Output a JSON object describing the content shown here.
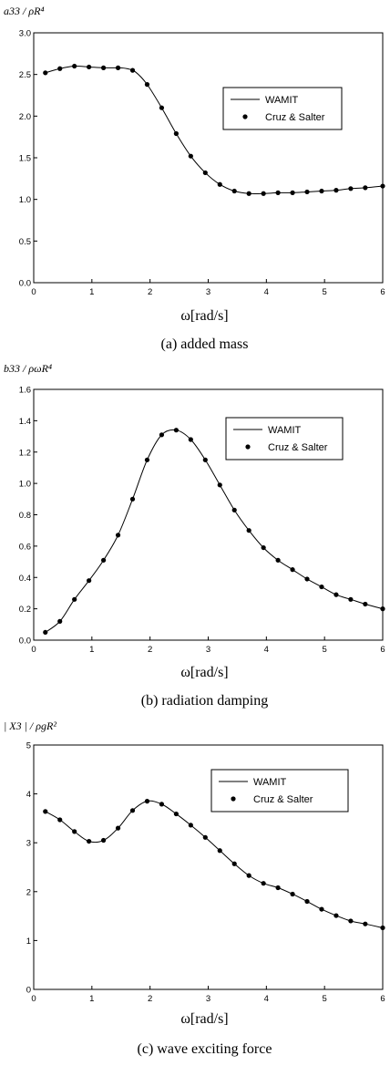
{
  "chart_data": [
    {
      "type": "line",
      "ylabel": "a33 / ρR⁴",
      "xlabel": "ω[rad/s]",
      "caption": "(a) added mass",
      "xlim": [
        0,
        6
      ],
      "ylim": [
        0,
        3.0
      ],
      "xticks": [
        "0",
        "1",
        "2",
        "3",
        "4",
        "5",
        "6"
      ],
      "yticks": [
        "0.0",
        "0.5",
        "1.0",
        "1.5",
        "2.0",
        "2.5",
        "3.0"
      ],
      "legend_position": "upper-right",
      "series": [
        {
          "name": "WAMIT",
          "style": "line",
          "x": [
            0.2,
            0.45,
            0.7,
            0.95,
            1.2,
            1.45,
            1.6,
            1.75,
            1.95,
            2.2,
            2.45,
            2.7,
            2.95,
            3.2,
            3.45,
            3.7,
            3.95,
            4.2,
            4.45,
            4.7,
            4.95,
            5.2,
            5.45,
            5.7,
            6.0
          ],
          "y": [
            2.52,
            2.57,
            2.6,
            2.59,
            2.58,
            2.58,
            2.57,
            2.53,
            2.38,
            2.1,
            1.79,
            1.52,
            1.32,
            1.18,
            1.1,
            1.07,
            1.07,
            1.08,
            1.08,
            1.09,
            1.1,
            1.11,
            1.13,
            1.14,
            1.16
          ]
        },
        {
          "name": "Cruz & Salter",
          "style": "markers",
          "x": [
            0.2,
            0.45,
            0.7,
            0.95,
            1.2,
            1.45,
            1.7,
            1.95,
            2.2,
            2.45,
            2.7,
            2.95,
            3.2,
            3.45,
            3.7,
            3.95,
            4.2,
            4.45,
            4.7,
            4.95,
            5.2,
            5.45,
            5.7,
            6.0
          ],
          "y": [
            2.52,
            2.57,
            2.6,
            2.59,
            2.58,
            2.58,
            2.55,
            2.38,
            2.1,
            1.79,
            1.52,
            1.32,
            1.18,
            1.1,
            1.07,
            1.07,
            1.08,
            1.08,
            1.09,
            1.1,
            1.11,
            1.13,
            1.14,
            1.16
          ]
        }
      ]
    },
    {
      "type": "line",
      "ylabel": "b33 / ρωR⁴",
      "xlabel": "ω[rad/s]",
      "caption": "(b) radiation damping",
      "xlim": [
        0,
        6
      ],
      "ylim": [
        0,
        1.6
      ],
      "xticks": [
        "0",
        "1",
        "2",
        "3",
        "4",
        "5",
        "6"
      ],
      "yticks": [
        "0.0",
        "0.2",
        "0.4",
        "0.6",
        "0.8",
        "1.0",
        "1.2",
        "1.4",
        "1.6"
      ],
      "legend_position": "upper-right",
      "series": [
        {
          "name": "WAMIT",
          "style": "line",
          "x": [
            0.2,
            0.45,
            0.7,
            0.95,
            1.2,
            1.45,
            1.7,
            1.95,
            2.2,
            2.45,
            2.7,
            2.95,
            3.2,
            3.45,
            3.7,
            3.95,
            4.2,
            4.45,
            4.7,
            4.95,
            5.2,
            5.45,
            5.7,
            6.0
          ],
          "y": [
            0.05,
            0.12,
            0.26,
            0.38,
            0.51,
            0.67,
            0.9,
            1.15,
            1.31,
            1.34,
            1.28,
            1.15,
            0.99,
            0.83,
            0.7,
            0.59,
            0.51,
            0.45,
            0.39,
            0.34,
            0.29,
            0.26,
            0.23,
            0.2
          ]
        },
        {
          "name": "Cruz & Salter",
          "style": "markers",
          "x": [
            0.2,
            0.45,
            0.7,
            0.95,
            1.2,
            1.45,
            1.7,
            1.95,
            2.2,
            2.45,
            2.7,
            2.95,
            3.2,
            3.45,
            3.7,
            3.95,
            4.2,
            4.45,
            4.7,
            4.95,
            5.2,
            5.45,
            5.7,
            6.0
          ],
          "y": [
            0.05,
            0.12,
            0.26,
            0.38,
            0.51,
            0.67,
            0.9,
            1.15,
            1.31,
            1.34,
            1.28,
            1.15,
            0.99,
            0.83,
            0.7,
            0.59,
            0.51,
            0.45,
            0.39,
            0.34,
            0.29,
            0.26,
            0.23,
            0.2
          ]
        }
      ]
    },
    {
      "type": "line",
      "ylabel": "| X3 | / ρgR²",
      "xlabel": "ω[rad/s]",
      "caption": "(c) wave exciting force",
      "xlim": [
        0,
        6
      ],
      "ylim": [
        0,
        5
      ],
      "xticks": [
        "0",
        "1",
        "2",
        "3",
        "4",
        "5",
        "6"
      ],
      "yticks": [
        "0",
        "1",
        "2",
        "3",
        "4",
        "5"
      ],
      "legend_position": "upper-right",
      "series": [
        {
          "name": "WAMIT",
          "style": "line",
          "x": [
            0.2,
            0.45,
            0.7,
            0.95,
            1.2,
            1.45,
            1.7,
            1.95,
            2.2,
            2.45,
            2.7,
            2.95,
            3.2,
            3.45,
            3.7,
            3.95,
            4.2,
            4.45,
            4.7,
            4.95,
            5.2,
            5.45,
            5.7,
            6.0
          ],
          "y": [
            3.64,
            3.47,
            3.23,
            3.03,
            3.05,
            3.3,
            3.66,
            3.85,
            3.79,
            3.59,
            3.36,
            3.11,
            2.84,
            2.57,
            2.33,
            2.17,
            2.08,
            1.95,
            1.8,
            1.64,
            1.51,
            1.4,
            1.34,
            1.26
          ]
        },
        {
          "name": "Cruz & Salter",
          "style": "markers",
          "x": [
            0.2,
            0.45,
            0.7,
            0.95,
            1.2,
            1.45,
            1.7,
            1.95,
            2.2,
            2.45,
            2.7,
            2.95,
            3.2,
            3.45,
            3.7,
            3.95,
            4.2,
            4.45,
            4.7,
            4.95,
            5.2,
            5.45,
            5.7,
            6.0
          ],
          "y": [
            3.64,
            3.47,
            3.23,
            3.03,
            3.05,
            3.3,
            3.66,
            3.85,
            3.79,
            3.59,
            3.36,
            3.11,
            2.84,
            2.57,
            2.33,
            2.17,
            2.08,
            1.95,
            1.8,
            1.64,
            1.51,
            1.4,
            1.34,
            1.26
          ]
        }
      ]
    }
  ]
}
